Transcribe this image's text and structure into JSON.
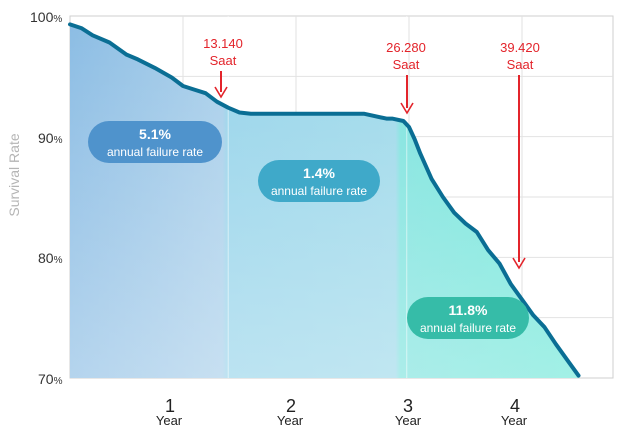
{
  "chart_data": {
    "type": "area",
    "ylabel": "Survival Rate",
    "ylim": [
      70,
      100
    ],
    "xlim": [
      0,
      4.8
    ],
    "grid": true,
    "y_ticks": [
      {
        "value": 100,
        "num": "100",
        "unit": "%"
      },
      {
        "value": 90,
        "num": "90",
        "unit": "%"
      },
      {
        "value": 80,
        "num": "80",
        "unit": "%"
      },
      {
        "value": 70,
        "num": "70",
        "unit": "%"
      }
    ],
    "x_ticks": [
      {
        "value": 1,
        "num": "1",
        "unit": "Year"
      },
      {
        "value": 2,
        "num": "2",
        "unit": "Year"
      },
      {
        "value": 3,
        "num": "3",
        "unit": "Year"
      },
      {
        "value": 4,
        "num": "4",
        "unit": "Year"
      }
    ],
    "series": [
      {
        "x": [
          0,
          0.1,
          0.2,
          0.35,
          0.5,
          0.6,
          0.75,
          0.9,
          1.0,
          1.1,
          1.2,
          1.3,
          1.4,
          1.5,
          1.6,
          1.75,
          2.0,
          2.3,
          2.6,
          2.8,
          2.85,
          2.95,
          3.0,
          3.05,
          3.1,
          3.2,
          3.3,
          3.4,
          3.5,
          3.6,
          3.7,
          3.8,
          3.9,
          4.0,
          4.1,
          4.2,
          4.3,
          4.4,
          4.5
        ],
        "y": [
          99.3,
          99.0,
          98.4,
          97.8,
          96.8,
          96.4,
          95.7,
          94.9,
          94.2,
          93.9,
          93.6,
          92.9,
          92.4,
          92.0,
          91.9,
          91.9,
          91.9,
          91.9,
          91.9,
          91.5,
          91.5,
          91.3,
          90.8,
          89.8,
          88.6,
          86.5,
          85.0,
          83.7,
          82.8,
          82.1,
          80.6,
          79.5,
          77.8,
          76.5,
          75.2,
          74.2,
          72.8,
          71.5,
          70.2
        ]
      }
    ],
    "regions": [
      {
        "x0": 0,
        "x1": 1.4,
        "rate": "5.1%",
        "caption": "annual failure rate",
        "color": "#4f93cc"
      },
      {
        "x0": 1.4,
        "x1": 2.98,
        "rate": "1.4%",
        "caption": "annual failure rate",
        "color": "#3fa9c9"
      },
      {
        "x0": 2.98,
        "x1": 4.5,
        "rate": "11.8%",
        "caption": "annual failure rate",
        "color": "#36bca8"
      }
    ],
    "annotations": [
      {
        "line1": "13.140",
        "line2": "Saat",
        "x": 1.4
      },
      {
        "line1": "26.280",
        "line2": "Saat",
        "x": 3.0
      },
      {
        "line1": "39.420",
        "line2": "Saat",
        "x": 4.03
      }
    ],
    "colors": {
      "line": "#0a6e94",
      "arrow": "#e3242b",
      "grid": "#e2e2e2",
      "fill_blue": "#8cbde4",
      "fill_mid": "#9ed9ea",
      "fill_teal": "#6fe8d8"
    }
  }
}
